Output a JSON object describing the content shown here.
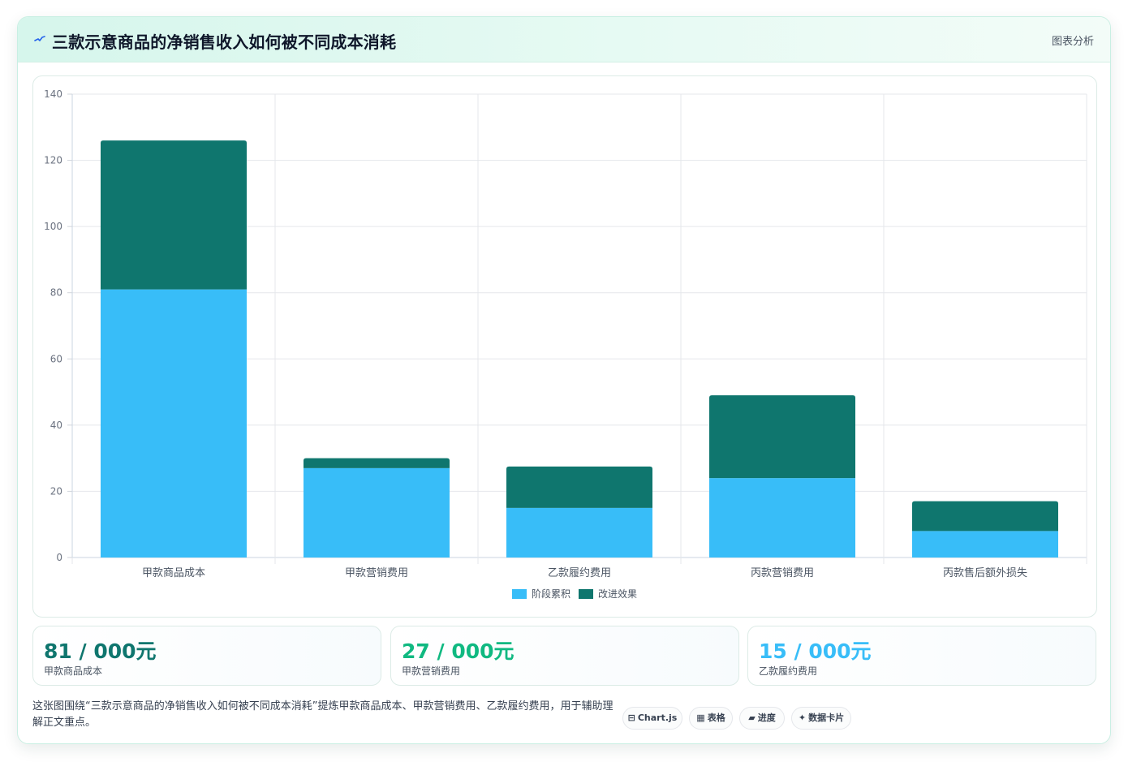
{
  "header": {
    "title": "三款示意商品的净销售收入如何被不同成本消耗",
    "tag": "图表分析",
    "icon": "pulse-icon"
  },
  "chart_data": {
    "type": "bar",
    "stacked": true,
    "categories": [
      "甲款商品成本",
      "甲款营销费用",
      "乙款履约费用",
      "丙款营销费用",
      "丙款售后额外损失"
    ],
    "series": [
      {
        "name": "阶段累积",
        "color": "#38bdf8",
        "values": [
          81,
          27,
          15,
          24,
          8
        ]
      },
      {
        "name": "改进效果",
        "color": "#0f766e",
        "values": [
          45,
          3,
          12.5,
          25,
          9
        ]
      }
    ],
    "ylim": [
      0,
      140
    ],
    "yticks": [
      0,
      20,
      40,
      60,
      80,
      100,
      120,
      140
    ],
    "grid": true,
    "legend": "bottom"
  },
  "stats": [
    {
      "value": "81 / 000元",
      "label": "甲款商品成本",
      "color": "#0f766e"
    },
    {
      "value": "27 / 000元",
      "label": "甲款营销费用",
      "color": "#10b981"
    },
    {
      "value": "15 / 000元",
      "label": "乙款履约费用",
      "color": "#38bdf8"
    }
  ],
  "footer": {
    "text": "这张图围绕“三款示意商品的净销售收入如何被不同成本消耗”提炼甲款商品成本、甲款营销费用、乙款履约费用，用于辅助理解正文重点。",
    "chips": [
      {
        "glyph": "⊟",
        "label": "Chart.js"
      },
      {
        "glyph": "▦",
        "label": "表格"
      },
      {
        "glyph": "▰",
        "label": "进度"
      },
      {
        "glyph": "✦",
        "label": "数据卡片"
      }
    ]
  }
}
